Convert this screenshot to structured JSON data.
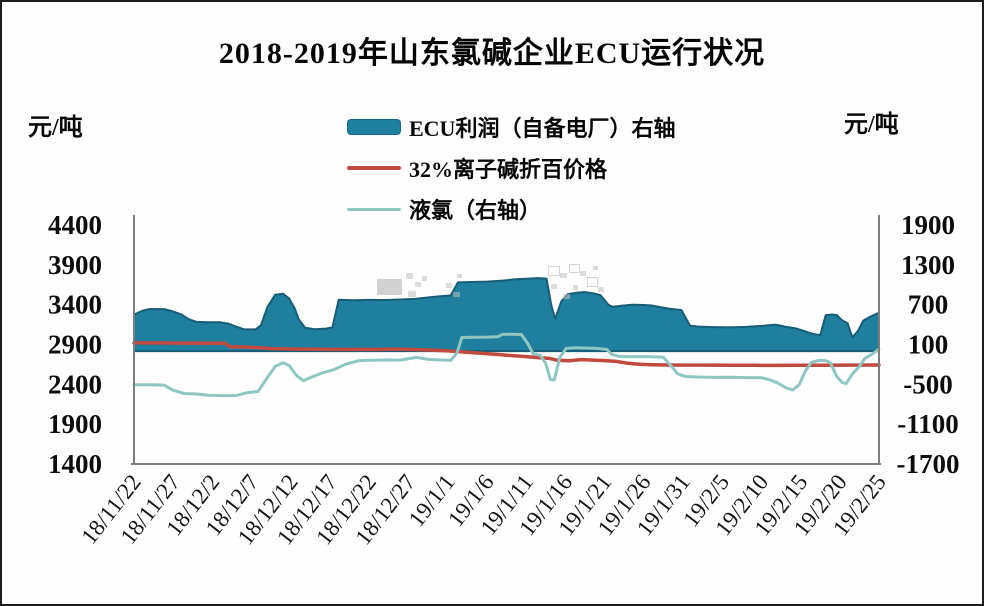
{
  "page": {
    "background": "#fefefe",
    "border_color": "#1d1d1d"
  },
  "chart_data": {
    "type": "area+line combo, dual y-axis, daily time series",
    "title": "2018-2019年山东氯碱企业ECU运行状况",
    "left_axis": {
      "unit": "元/吨",
      "ticks": [
        4400,
        3900,
        3400,
        2900,
        2400,
        1900,
        1400
      ],
      "range": [
        1400,
        4400
      ]
    },
    "right_axis": {
      "unit": "元/吨",
      "ticks": [
        1900,
        1300,
        700,
        100,
        -500,
        -1100,
        -1700
      ],
      "range": [
        -1700,
        1900
      ]
    },
    "x_tick_labels": [
      "18/11/22",
      "18/11/27",
      "18/12/2",
      "18/12/7",
      "18/12/12",
      "18/12/17",
      "18/12/22",
      "18/12/27",
      "19/1/1",
      "19/1/6",
      "19/1/11",
      "19/1/16",
      "19/1/21",
      "19/1/26",
      "19/1/31",
      "19/2/5",
      "19/2/10",
      "19/2/15",
      "19/2/20",
      "19/2/25"
    ],
    "x_tick_interval_days": 5,
    "x_days_span": 95,
    "grid": "off",
    "legend_position": "top-center, vertical list",
    "series": [
      {
        "name": "ECU利润（自备电厂）右轴",
        "type": "area",
        "axis": "right",
        "color": "#1e7f9e",
        "edge_color": "#175d77",
        "baseline": 0,
        "points": [
          [
            0,
            550
          ],
          [
            1,
            605
          ],
          [
            2,
            635
          ],
          [
            4,
            630
          ],
          [
            5,
            595
          ],
          [
            6,
            555
          ],
          [
            7,
            480
          ],
          [
            8,
            440
          ],
          [
            9.5,
            435
          ],
          [
            11,
            435
          ],
          [
            12,
            415
          ],
          [
            13,
            370
          ],
          [
            14,
            330
          ],
          [
            15.5,
            328
          ],
          [
            16.2,
            390
          ],
          [
            17,
            660
          ],
          [
            18,
            850
          ],
          [
            19,
            865
          ],
          [
            19.8,
            790
          ],
          [
            20.5,
            640
          ],
          [
            21,
            480
          ],
          [
            21.8,
            355
          ],
          [
            23,
            330
          ],
          [
            24.5,
            340
          ],
          [
            25.3,
            358
          ],
          [
            26.1,
            775
          ],
          [
            28,
            768
          ],
          [
            30,
            772
          ],
          [
            32,
            770
          ],
          [
            34,
            778
          ],
          [
            36,
            790
          ],
          [
            38,
            815
          ],
          [
            39.6,
            832
          ],
          [
            40.4,
            838
          ],
          [
            41.3,
            1035
          ],
          [
            43,
            1042
          ],
          [
            45,
            1048
          ],
          [
            47,
            1062
          ],
          [
            48.5,
            1080
          ],
          [
            50,
            1090
          ],
          [
            51.5,
            1100
          ],
          [
            52.6,
            1092
          ],
          [
            53.2,
            700
          ],
          [
            53.7,
            485
          ],
          [
            54.5,
            752
          ],
          [
            55.3,
            858
          ],
          [
            56.5,
            882
          ],
          [
            57.5,
            890
          ],
          [
            58.5,
            873
          ],
          [
            59.5,
            842
          ],
          [
            60.5,
            700
          ],
          [
            61,
            668
          ],
          [
            62,
            682
          ],
          [
            63.5,
            700
          ],
          [
            65,
            695
          ],
          [
            66,
            688
          ],
          [
            67,
            665
          ],
          [
            68.2,
            640
          ],
          [
            69,
            628
          ],
          [
            69.8,
            620
          ],
          [
            70.9,
            385
          ],
          [
            72,
            370
          ],
          [
            74,
            362
          ],
          [
            76,
            358
          ],
          [
            78,
            365
          ],
          [
            80,
            380
          ],
          [
            81.8,
            400
          ],
          [
            83,
            370
          ],
          [
            84.3,
            345
          ],
          [
            85.3,
            310
          ],
          [
            86.5,
            262
          ],
          [
            87.5,
            240
          ],
          [
            88.2,
            540
          ],
          [
            89,
            552
          ],
          [
            89.6,
            545
          ],
          [
            90.3,
            465
          ],
          [
            91,
            420
          ],
          [
            91.6,
            210
          ],
          [
            92.3,
            300
          ],
          [
            93,
            460
          ],
          [
            94,
            525
          ],
          [
            95,
            578
          ]
        ]
      },
      {
        "name": "32%离子碱折百价格",
        "type": "line",
        "axis": "left",
        "color": "#c2493e",
        "points": [
          [
            0,
            2920
          ],
          [
            3,
            2920
          ],
          [
            6,
            2918
          ],
          [
            9,
            2916
          ],
          [
            11.6,
            2915
          ],
          [
            12.2,
            2872
          ],
          [
            14,
            2868
          ],
          [
            15.2,
            2862
          ],
          [
            16.5,
            2856
          ],
          [
            17.5,
            2848
          ],
          [
            20,
            2843
          ],
          [
            23,
            2841
          ],
          [
            26,
            2839
          ],
          [
            29,
            2837
          ],
          [
            32,
            2840
          ],
          [
            34,
            2840
          ],
          [
            36,
            2836
          ],
          [
            38,
            2830
          ],
          [
            40,
            2820
          ],
          [
            42,
            2806
          ],
          [
            44,
            2792
          ],
          [
            46,
            2778
          ],
          [
            48,
            2762
          ],
          [
            50,
            2748
          ],
          [
            51.5,
            2736
          ],
          [
            53,
            2726
          ],
          [
            54,
            2702
          ],
          [
            55.5,
            2696
          ],
          [
            57,
            2710
          ],
          [
            58.5,
            2704
          ],
          [
            60,
            2698
          ],
          [
            61.5,
            2688
          ],
          [
            63,
            2664
          ],
          [
            64.5,
            2652
          ],
          [
            66,
            2646
          ],
          [
            68,
            2643
          ],
          [
            70,
            2642
          ],
          [
            73,
            2641
          ],
          [
            76,
            2640
          ],
          [
            79,
            2639
          ],
          [
            82,
            2638
          ],
          [
            85,
            2639
          ],
          [
            88,
            2640
          ],
          [
            91,
            2641
          ],
          [
            95,
            2643
          ]
        ]
      },
      {
        "name": "液氯（右轴）",
        "type": "line",
        "axis": "right",
        "color": "#8fc6c1",
        "points": [
          [
            0,
            -505
          ],
          [
            2,
            -505
          ],
          [
            3.8,
            -512
          ],
          [
            5,
            -590
          ],
          [
            6.4,
            -638
          ],
          [
            8,
            -645
          ],
          [
            9.5,
            -663
          ],
          [
            11,
            -670
          ],
          [
            13,
            -670
          ],
          [
            14.5,
            -625
          ],
          [
            15.8,
            -608
          ],
          [
            17,
            -400
          ],
          [
            18,
            -230
          ],
          [
            19,
            -175
          ],
          [
            19.8,
            -218
          ],
          [
            20.7,
            -362
          ],
          [
            21.6,
            -445
          ],
          [
            22.6,
            -392
          ],
          [
            24,
            -330
          ],
          [
            25.5,
            -278
          ],
          [
            27,
            -196
          ],
          [
            28.6,
            -146
          ],
          [
            30,
            -138
          ],
          [
            32,
            -132
          ],
          [
            34,
            -135
          ],
          [
            36,
            -95
          ],
          [
            37.5,
            -125
          ],
          [
            39,
            -132
          ],
          [
            40.4,
            -140
          ],
          [
            41.2,
            -25
          ],
          [
            41.8,
            205
          ],
          [
            43,
            210
          ],
          [
            45,
            212
          ],
          [
            46.4,
            218
          ],
          [
            47,
            252
          ],
          [
            48.2,
            255
          ],
          [
            49.4,
            250
          ],
          [
            50.2,
            115
          ],
          [
            50.9,
            -42
          ],
          [
            51.8,
            -60
          ],
          [
            52.5,
            -185
          ],
          [
            53.1,
            -428
          ],
          [
            53.6,
            -435
          ],
          [
            54.3,
            -95
          ],
          [
            55.1,
            42
          ],
          [
            56.2,
            50
          ],
          [
            57.5,
            47
          ],
          [
            59,
            42
          ],
          [
            60.3,
            25
          ],
          [
            60.9,
            -48
          ],
          [
            61.8,
            -78
          ],
          [
            63,
            -86
          ],
          [
            64.5,
            -82
          ],
          [
            66,
            -86
          ],
          [
            67.5,
            -92
          ],
          [
            68.4,
            -210
          ],
          [
            69.3,
            -340
          ],
          [
            70.3,
            -382
          ],
          [
            72,
            -390
          ],
          [
            74,
            -395
          ],
          [
            76,
            -393
          ],
          [
            78,
            -398
          ],
          [
            80,
            -400
          ],
          [
            81,
            -430
          ],
          [
            82,
            -475
          ],
          [
            83.2,
            -555
          ],
          [
            84,
            -585
          ],
          [
            84.8,
            -510
          ],
          [
            85.6,
            -300
          ],
          [
            86.4,
            -168
          ],
          [
            87.3,
            -140
          ],
          [
            88.2,
            -142
          ],
          [
            88.8,
            -178
          ],
          [
            89.6,
            -380
          ],
          [
            90.3,
            -472
          ],
          [
            90.8,
            -490
          ],
          [
            91.6,
            -345
          ],
          [
            92.4,
            -245
          ],
          [
            93.2,
            -110
          ],
          [
            94.2,
            -40
          ],
          [
            95,
            30
          ]
        ]
      }
    ],
    "axis_line_color": "#7d7d7d"
  }
}
